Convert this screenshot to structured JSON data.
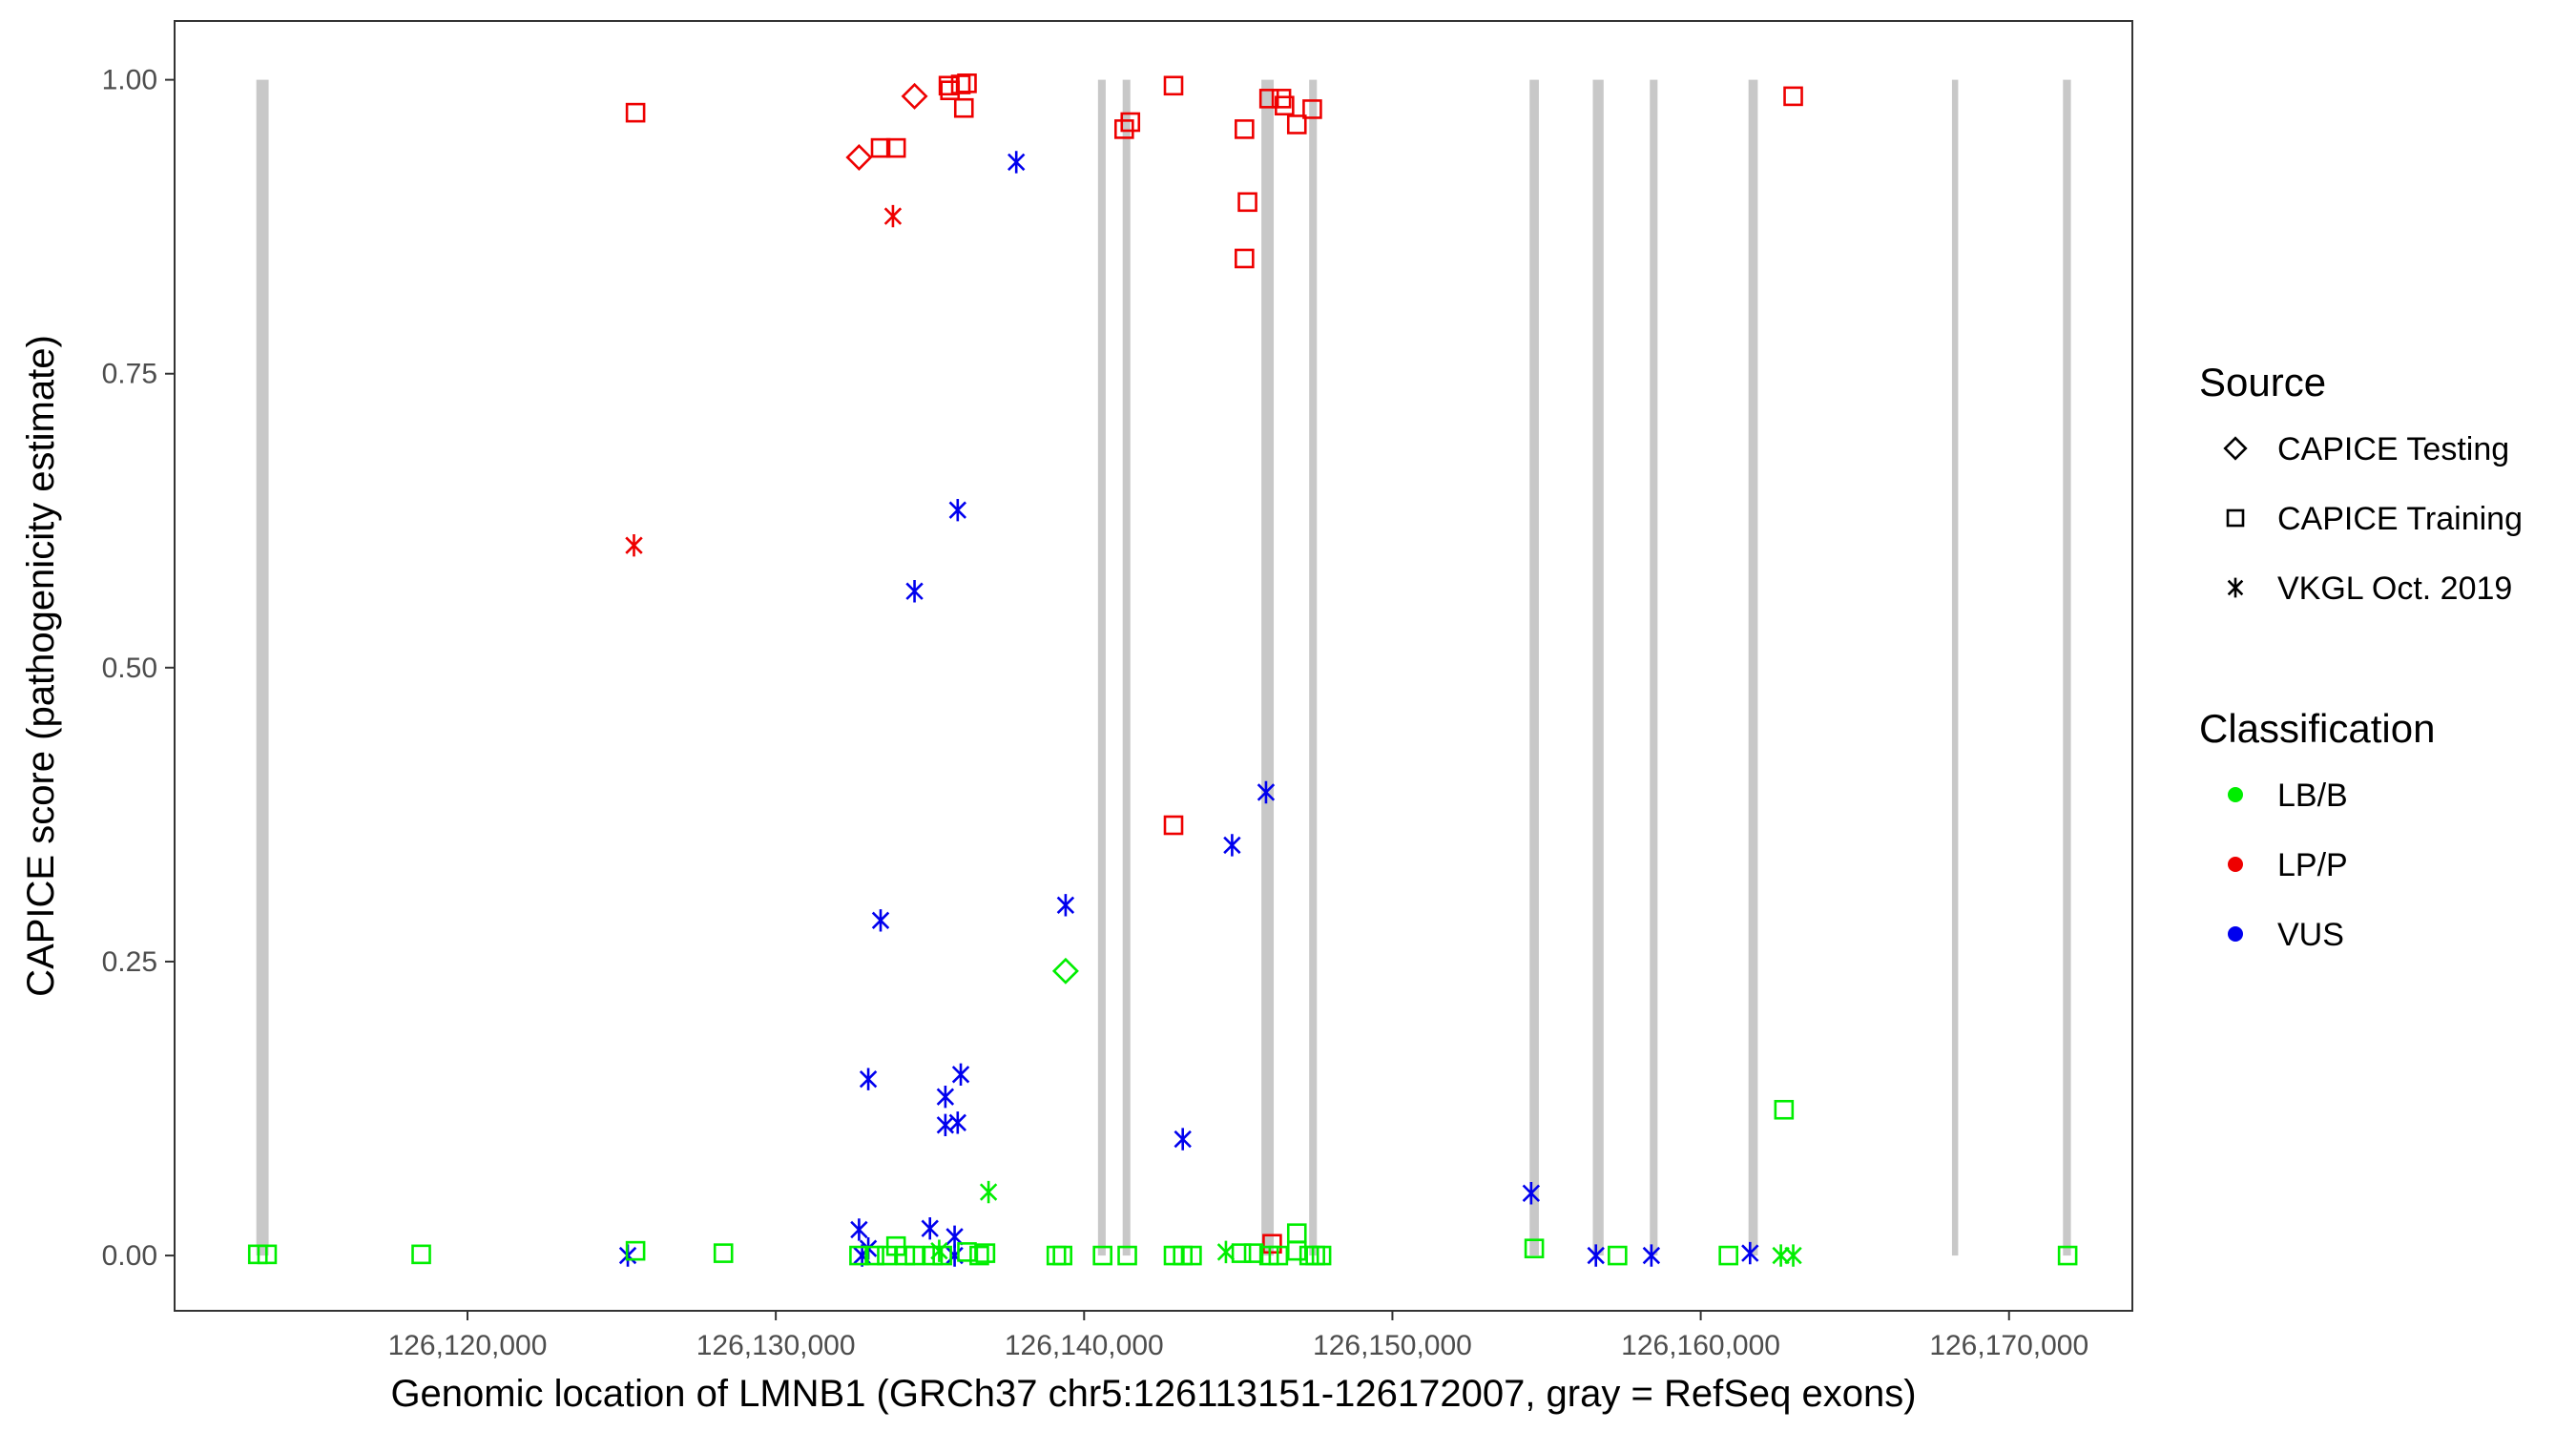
{
  "chart_data": {
    "type": "scatter",
    "title": "",
    "xlabel": "Genomic location of LMNB1 (GRCh37 chr5:126113151-126172007, gray = RefSeq exons)",
    "ylabel": "CAPICE score (pathogenicity estimate)",
    "xlim": [
      126110500,
      126174000
    ],
    "ylim": [
      -0.047,
      1.05
    ],
    "x_ticks": [
      126120000,
      126130000,
      126140000,
      126150000,
      126160000,
      126170000
    ],
    "x_tick_labels": [
      "126,120,000",
      "126,130,000",
      "126,140,000",
      "126,150,000",
      "126,160,000",
      "126,170,000"
    ],
    "y_ticks": [
      0,
      0.25,
      0.5,
      0.75,
      1
    ],
    "y_tick_labels": [
      "0.00",
      "0.25",
      "0.50",
      "0.75",
      "1.00"
    ],
    "grid": false,
    "exons": [
      [
        126113151,
        126113550
      ],
      [
        126140450,
        126140700
      ],
      [
        126141250,
        126141500
      ],
      [
        126145750,
        126146150
      ],
      [
        126147300,
        126147550
      ],
      [
        126154450,
        126154750
      ],
      [
        126156500,
        126156850
      ],
      [
        126158350,
        126158600
      ],
      [
        126161550,
        126161850
      ],
      [
        126168150,
        126168350
      ],
      [
        126171750,
        126172007
      ]
    ],
    "colors": {
      "LB/B": "#00ee00",
      "LP/P": "#ee0000",
      "VUS": "#0000ee",
      "exon": "#c8c8c8"
    },
    "legend": {
      "position": "right",
      "source_title": "Source",
      "source_items": [
        {
          "label": "CAPICE Testing",
          "shape": "diamond"
        },
        {
          "label": "CAPICE Training",
          "shape": "square"
        },
        {
          "label": "VKGL Oct. 2019",
          "shape": "asterisk"
        }
      ],
      "classification_title": "Classification",
      "classification_items": [
        {
          "label": "LB/B",
          "color": "#00ee00"
        },
        {
          "label": "LP/P",
          "color": "#ee0000"
        },
        {
          "label": "VUS",
          "color": "#0000ee"
        }
      ]
    },
    "series": [
      {
        "source": "CAPICE Training",
        "classification": "LP/P",
        "shape": "square",
        "points": [
          [
            126125450,
            0.972
          ],
          [
            126133400,
            0.942
          ],
          [
            126133900,
            0.942
          ],
          [
            126135600,
            0.995
          ],
          [
            126135650,
            0.991
          ],
          [
            126136000,
            0.996
          ],
          [
            126136200,
            0.997
          ],
          [
            126136100,
            0.976
          ],
          [
            126141300,
            0.958
          ],
          [
            126141500,
            0.964
          ],
          [
            126142900,
            0.995
          ],
          [
            126145200,
            0.958
          ],
          [
            126145300,
            0.896
          ],
          [
            126145200,
            0.848
          ],
          [
            126146000,
            0.984
          ],
          [
            126146400,
            0.984
          ],
          [
            126146500,
            0.978
          ],
          [
            126146900,
            0.962
          ],
          [
            126147400,
            0.975
          ],
          [
            126163000,
            0.986
          ],
          [
            126142900,
            0.366
          ],
          [
            126146100,
            0.01
          ]
        ]
      },
      {
        "source": "CAPICE Testing",
        "classification": "LP/P",
        "shape": "diamond",
        "points": [
          [
            126132700,
            0.934
          ],
          [
            126134500,
            0.986
          ]
        ]
      },
      {
        "source": "VKGL Oct. 2019",
        "classification": "LP/P",
        "shape": "asterisk",
        "points": [
          [
            126133800,
            0.884
          ],
          [
            126125400,
            0.604
          ]
        ]
      },
      {
        "source": "VKGL Oct. 2019",
        "classification": "VUS",
        "shape": "asterisk",
        "points": [
          [
            126137800,
            0.93
          ],
          [
            126135900,
            0.634
          ],
          [
            126134500,
            0.565
          ],
          [
            126145900,
            0.394
          ],
          [
            126144800,
            0.349
          ],
          [
            126139400,
            0.298
          ],
          [
            126133400,
            0.285
          ],
          [
            126136000,
            0.154
          ],
          [
            126133000,
            0.15
          ],
          [
            126135500,
            0.135
          ],
          [
            126135500,
            0.111
          ],
          [
            126135900,
            0.113
          ],
          [
            126143200,
            0.099
          ],
          [
            126154500,
            0.053
          ],
          [
            126132700,
            0.022
          ],
          [
            126135000,
            0.023
          ],
          [
            126135800,
            0.016
          ],
          [
            126133000,
            0.006
          ],
          [
            126125200,
            0.0
          ],
          [
            126132800,
            0.0
          ],
          [
            126135800,
            0.0
          ],
          [
            126156600,
            0.0
          ],
          [
            126158400,
            0.0
          ],
          [
            126161600,
            0.002
          ]
        ]
      },
      {
        "source": "VKGL Oct. 2019",
        "classification": "LB/B",
        "shape": "asterisk",
        "points": [
          [
            126136900,
            0.054
          ],
          [
            126135300,
            0.004
          ],
          [
            126144600,
            0.003
          ],
          [
            126162600,
            0.0
          ],
          [
            126163000,
            0.0
          ]
        ]
      },
      {
        "source": "CAPICE Testing",
        "classification": "LB/B",
        "shape": "diamond",
        "points": [
          [
            126139400,
            0.242
          ]
        ]
      },
      {
        "source": "CAPICE Training",
        "classification": "LB/B",
        "shape": "square",
        "points": [
          [
            126113200,
            0.001
          ],
          [
            126113500,
            0.001
          ],
          [
            126118500,
            0.001
          ],
          [
            126125450,
            0.004
          ],
          [
            126128300,
            0.002
          ],
          [
            126132700,
            0.0
          ],
          [
            126133200,
            0.0
          ],
          [
            126133600,
            0.0
          ],
          [
            126133900,
            0.008
          ],
          [
            126134200,
            0.0
          ],
          [
            126134500,
            0.0
          ],
          [
            126135100,
            0.0
          ],
          [
            126135400,
            0.0
          ],
          [
            126136200,
            0.003
          ],
          [
            126136600,
            0.0
          ],
          [
            126136800,
            0.002
          ],
          [
            126139100,
            0.0
          ],
          [
            126139300,
            0.0
          ],
          [
            126140600,
            0.0
          ],
          [
            126141400,
            0.0
          ],
          [
            126142900,
            0.0
          ],
          [
            126143200,
            0.0
          ],
          [
            126143500,
            0.0
          ],
          [
            126145100,
            0.002
          ],
          [
            126145500,
            0.002
          ],
          [
            126146000,
            0.0
          ],
          [
            126146300,
            0.0
          ],
          [
            126146900,
            0.019
          ],
          [
            126146900,
            0.004
          ],
          [
            126147300,
            0.0
          ],
          [
            126147500,
            0.0
          ],
          [
            126147700,
            0.0
          ],
          [
            126154600,
            0.006
          ],
          [
            126157300,
            0.0
          ],
          [
            126160900,
            0.0
          ],
          [
            126162700,
            0.124
          ],
          [
            126171900,
            0.0
          ]
        ]
      }
    ]
  }
}
